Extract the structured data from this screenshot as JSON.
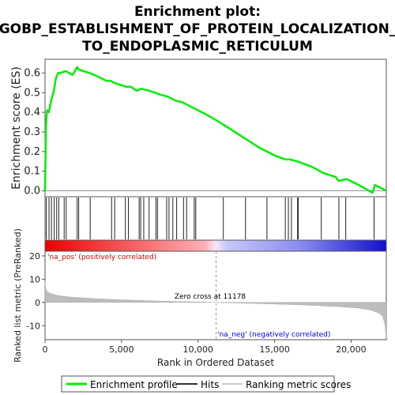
{
  "chart_data": {
    "type": "line",
    "title_lines": [
      "Enrichment plot:",
      "GOBP_ESTABLISHMENT_OF_PROTEIN_LOCALIZATION_",
      "TO_ENDOPLASMIC_RETICULUM"
    ],
    "top_panel": {
      "ylabel": "Enrichment score (ES)",
      "ylim": [
        -0.03,
        0.67
      ],
      "yticks": [
        "0.0",
        "0.1",
        "0.2",
        "0.3",
        "0.4",
        "0.5",
        "0.6"
      ],
      "ytick_values": [
        0.0,
        0.1,
        0.2,
        0.3,
        0.4,
        0.5,
        0.6
      ],
      "series": [
        {
          "name": "Enrichment profile",
          "color": "#00ee00",
          "x": [
            0,
            60,
            130,
            250,
            400,
            550,
            700,
            850,
            1000,
            1350,
            1800,
            2100,
            2150,
            2500,
            2900,
            3500,
            4000,
            4300,
            4500,
            4900,
            5300,
            5600,
            6000,
            6300,
            6800,
            7200,
            7500,
            8000,
            8500,
            9000,
            9500,
            10000,
            10500,
            11178,
            12000,
            13000,
            14000,
            15000,
            15700,
            16000,
            16500,
            17500,
            18200,
            19000,
            19200,
            19700,
            20500,
            21400,
            21550,
            22300
          ],
          "values": [
            0.0,
            0.33,
            0.41,
            0.4,
            0.46,
            0.5,
            0.57,
            0.6,
            0.6,
            0.61,
            0.59,
            0.63,
            0.62,
            0.61,
            0.6,
            0.58,
            0.56,
            0.56,
            0.55,
            0.54,
            0.53,
            0.53,
            0.51,
            0.52,
            0.51,
            0.5,
            0.49,
            0.48,
            0.46,
            0.45,
            0.43,
            0.41,
            0.39,
            0.36,
            0.32,
            0.27,
            0.22,
            0.18,
            0.16,
            0.16,
            0.15,
            0.12,
            0.09,
            0.07,
            0.05,
            0.06,
            0.03,
            -0.01,
            0.03,
            0.0
          ]
        }
      ]
    },
    "hits": [
      80,
      260,
      420,
      600,
      760,
      900,
      1250,
      1380,
      2100,
      2200,
      2950,
      4350,
      4550,
      5250,
      5450,
      6150,
      6250,
      6450,
      6800,
      7250,
      7350,
      7950,
      8100,
      8350,
      8600,
      9050,
      9250,
      9750,
      9850,
      11650,
      13100,
      14500,
      15700,
      15900,
      16100,
      16500,
      16550,
      18050,
      19200,
      19650,
      21500
    ],
    "bottom_panel": {
      "ylabel": "Ranked list metric (PreRanked)",
      "ylim": [
        -16,
        22
      ],
      "yticks": [
        "20",
        "10",
        "0",
        "-10"
      ],
      "ytick_values": [
        20,
        10,
        0,
        -10
      ],
      "xlabel": "Rank in Ordered Dataset",
      "xlim": [
        0,
        22300
      ],
      "xticks": [
        "0",
        "5,000",
        "10,000",
        "15,000",
        "20,000"
      ],
      "xtick_values": [
        0,
        5000,
        10000,
        15000,
        20000
      ],
      "metric_x": [
        0,
        30,
        100,
        300,
        800,
        1500,
        3000,
        5000,
        8000,
        11178,
        14000,
        17000,
        19000,
        20500,
        21300,
        21800,
        22050,
        22200,
        22300
      ],
      "metric_values": [
        9,
        6.5,
        5,
        4,
        3,
        2.4,
        1.7,
        1.1,
        0.5,
        0,
        -0.5,
        -1.1,
        -1.7,
        -2.4,
        -3.3,
        -4.5,
        -6,
        -9,
        -15
      ],
      "zero_cross": 11178,
      "zero_cross_label": "Zero cross at 11178",
      "pos_label": "'na_pos' (positively correlated)",
      "neg_label": "'na_neg' (negatively correlated)",
      "pos_color": "#dd0000",
      "neg_color": "#0000dd"
    },
    "legend": [
      {
        "label": "Enrichment profile",
        "color": "#00ee00",
        "kind": "line"
      },
      {
        "label": "Hits",
        "color": "#333333",
        "kind": "line"
      },
      {
        "label": "Ranking metric scores",
        "color": "#cccccc",
        "kind": "line"
      }
    ],
    "legend_placement": "bottom"
  }
}
